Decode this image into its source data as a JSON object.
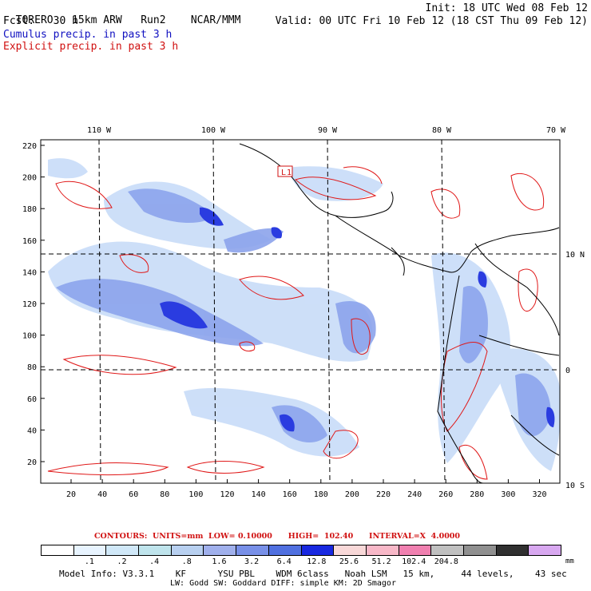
{
  "header": {
    "model": "TORERO",
    "resolution": "15km ARW",
    "run": "Run2",
    "org": "NCAR/MMM",
    "init": "Init: 18 UTC Wed 08 Feb 12",
    "fcst_label": "Fcst:",
    "fcst_value": "30 h",
    "valid": "Valid: 00 UTC Fri 10 Feb 12 (18 CST Thu 09 Feb 12)",
    "field1": "Cumulus precip. in past 3 h",
    "field2": "Explicit precip. in past 3 h",
    "field1_color": "#1010c0",
    "field2_color": "#d01010"
  },
  "map": {
    "top_lon_labels": [
      "110 W",
      "100 W",
      "90 W",
      "80 W",
      "70 W"
    ],
    "right_lat_labels": [
      "10 N",
      "0",
      "10 S"
    ],
    "y_ticks": [
      "220",
      "200",
      "180",
      "160",
      "140",
      "120",
      "100",
      "80",
      "60",
      "40",
      "20"
    ],
    "x_ticks": [
      "20",
      "40",
      "60",
      "80",
      "100",
      "120",
      "140",
      "160",
      "180",
      "200",
      "220",
      "240",
      "260",
      "280",
      "300",
      "320"
    ],
    "low_label": "L",
    "low_value": "1"
  },
  "contours": {
    "text": "CONTOURS:  UNITS=mm  LOW= 0.10000      HIGH=  102.40      INTERVAL=X  4.0000"
  },
  "legend": {
    "colors": [
      "#ffffff",
      "#e8f4ff",
      "#d0e8f8",
      "#bfe4ec",
      "#b8d0f0",
      "#a0b0ec",
      "#7890e8",
      "#5070e0",
      "#1828e0",
      "#f8d8d8",
      "#f8b8c8",
      "#f080b0",
      "#c0c0c0",
      "#909090",
      "#303030",
      "#d8a8f0"
    ],
    "labels": [
      ".1",
      ".2",
      ".4",
      ".8",
      "1.6",
      "3.2",
      "6.4",
      "12.8",
      "25.6",
      "51.2",
      "102.4",
      "204.8"
    ],
    "unit": "mm"
  },
  "footer": {
    "line1": "Model Info: V3.3.1    KF      YSU PBL    WDM 6class   Noah LSM   15 km,     44 levels,    43 sec",
    "line2": "LW: Godd SW: Goddard DIFF: simple KM: 2D Smagor"
  }
}
